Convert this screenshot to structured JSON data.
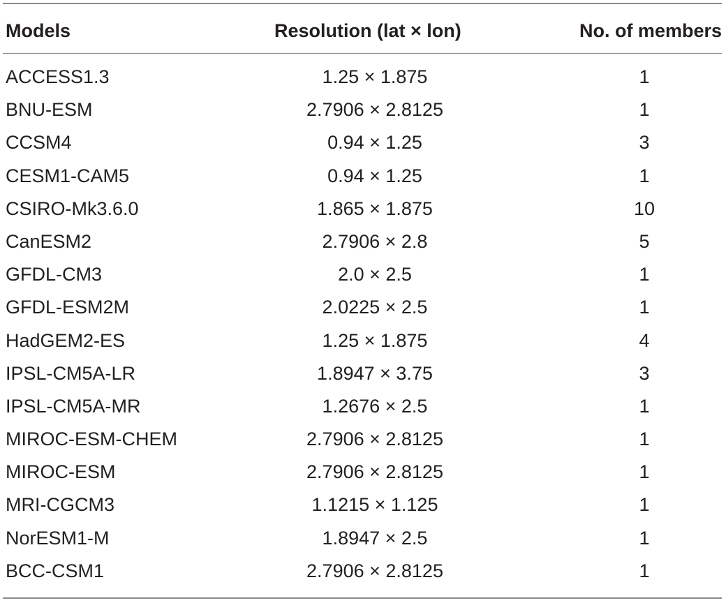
{
  "table": {
    "headers": {
      "model": "Models",
      "resolution": "Resolution (lat × lon)",
      "members": "No. of members"
    },
    "rows": [
      {
        "model": "ACCESS1.3",
        "resolution": "1.25 × 1.875",
        "members": "1"
      },
      {
        "model": "BNU-ESM",
        "resolution": "2.7906 × 2.8125",
        "members": "1"
      },
      {
        "model": "CCSM4",
        "resolution": "0.94 × 1.25",
        "members": "3"
      },
      {
        "model": "CESM1-CAM5",
        "resolution": "0.94 × 1.25",
        "members": "1"
      },
      {
        "model": "CSIRO-Mk3.6.0",
        "resolution": "1.865 × 1.875",
        "members": "10"
      },
      {
        "model": "CanESM2",
        "resolution": "2.7906 × 2.8",
        "members": "5"
      },
      {
        "model": "GFDL-CM3",
        "resolution": "2.0 × 2.5",
        "members": "1"
      },
      {
        "model": "GFDL-ESM2M",
        "resolution": "2.0225 × 2.5",
        "members": "1"
      },
      {
        "model": "HadGEM2-ES",
        "resolution": "1.25 × 1.875",
        "members": "4"
      },
      {
        "model": "IPSL-CM5A-LR",
        "resolution": "1.8947 × 3.75",
        "members": "3"
      },
      {
        "model": "IPSL-CM5A-MR",
        "resolution": "1.2676 × 2.5",
        "members": "1"
      },
      {
        "model": "MIROC-ESM-CHEM",
        "resolution": "2.7906 × 2.8125",
        "members": "1"
      },
      {
        "model": "MIROC-ESM",
        "resolution": "2.7906 × 2.8125",
        "members": "1"
      },
      {
        "model": "MRI-CGCM3",
        "resolution": "1.1215 × 1.125",
        "members": "1"
      },
      {
        "model": "NorESM1-M",
        "resolution": "1.8947 × 2.5",
        "members": "1"
      },
      {
        "model": "BCC-CSM1",
        "resolution": "2.7906 × 2.8125",
        "members": "1"
      }
    ]
  }
}
